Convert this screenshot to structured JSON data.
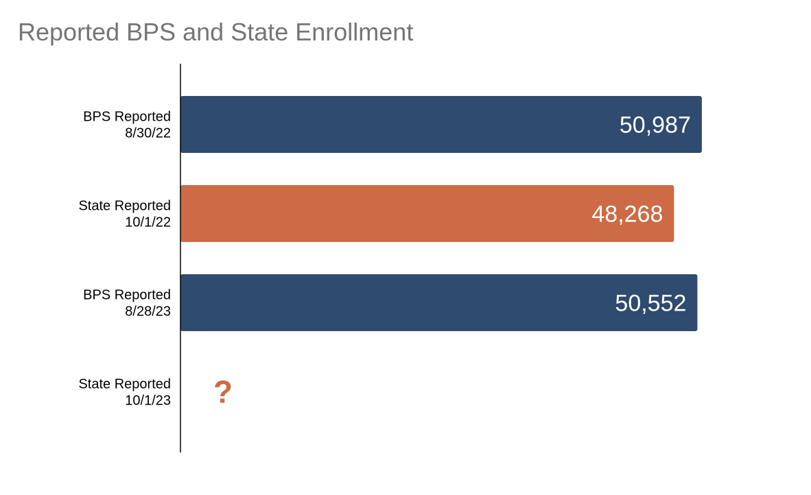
{
  "chart_data": {
    "type": "bar",
    "orientation": "horizontal",
    "title": "Reported BPS and State Enrollment",
    "categories": [
      [
        "BPS Reported",
        "8/30/22"
      ],
      [
        "State Reported",
        "10/1/22"
      ],
      [
        "BPS Reported",
        "8/28/23"
      ],
      [
        "State Reported",
        "10/1/23"
      ]
    ],
    "values": [
      50987,
      48268,
      50552,
      null
    ],
    "value_labels": [
      "50,987",
      "48,268",
      "50,552",
      "?"
    ],
    "bar_colors": [
      "#2f4b6f",
      "#cc6b45",
      "#2f4b6f",
      "#cc6b45"
    ],
    "xlim": [
      0,
      52000
    ],
    "grid": false,
    "legend": "none"
  }
}
